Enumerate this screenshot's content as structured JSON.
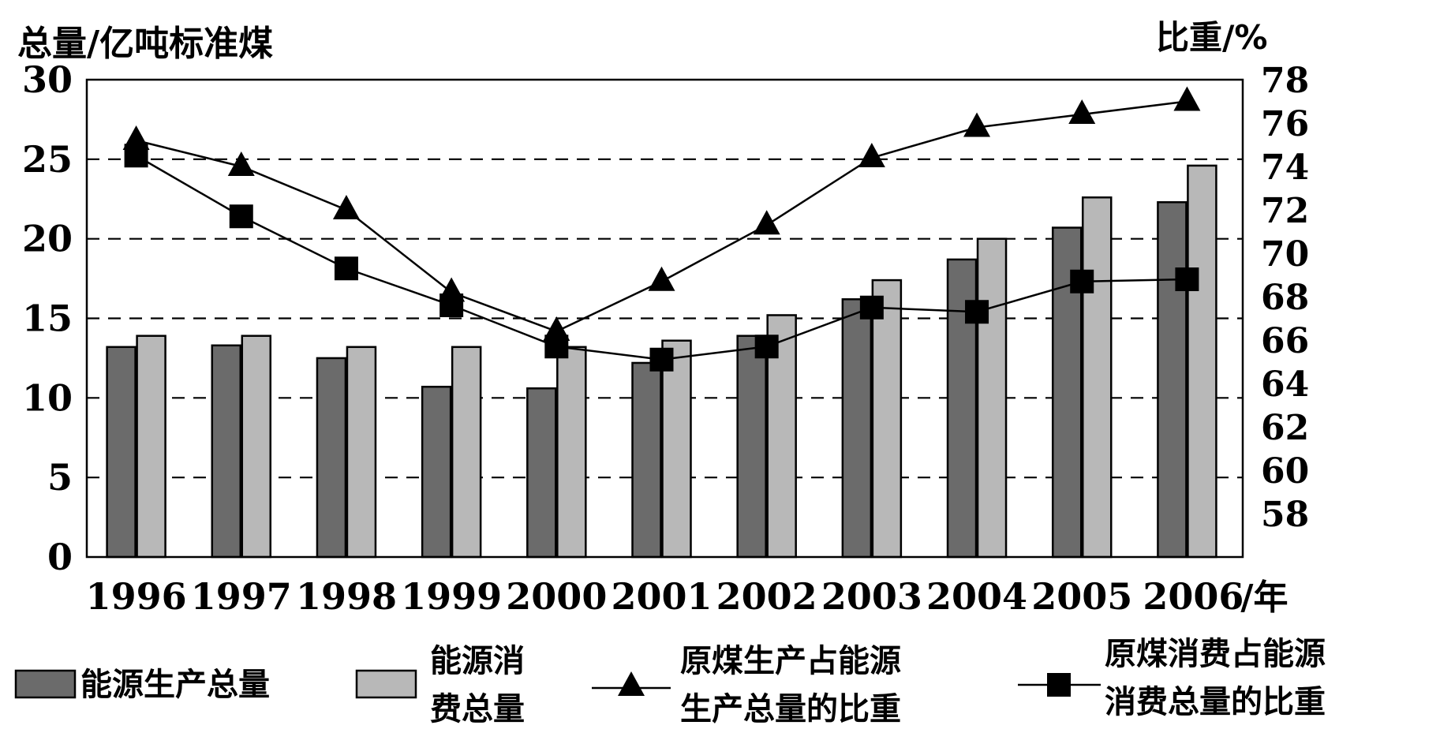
{
  "chart_data": {
    "type": "bar",
    "left_axis_title": "总量/亿吨标准煤",
    "right_axis_title": "比重/%",
    "categories": [
      "1996",
      "1997",
      "1998",
      "1999",
      "2000",
      "2001",
      "2002",
      "2003",
      "2004",
      "2005",
      "2006"
    ],
    "x_unit_label": "/年",
    "left_axis": {
      "ylim": [
        0,
        30
      ],
      "ticks": [
        "0",
        "5",
        "10",
        "15",
        "20",
        "25",
        "30"
      ]
    },
    "right_axis": {
      "ylim": [
        56,
        78
      ],
      "ticks": [
        "58",
        "60",
        "62",
        "64",
        "66",
        "68",
        "70",
        "72",
        "74",
        "76",
        "78"
      ]
    },
    "grid": "dashed horizontal at 5, 10, 15, 20, 25",
    "bar_series": [
      {
        "name": "能源生产总量",
        "color": "#6b6b6b",
        "values": [
          13.2,
          13.3,
          12.5,
          10.7,
          10.6,
          12.2,
          13.9,
          16.2,
          18.7,
          20.7,
          22.3
        ]
      },
      {
        "name": "能源消费总量",
        "color": "#b8b8b8",
        "values": [
          13.9,
          13.9,
          13.2,
          13.2,
          13.2,
          13.6,
          15.2,
          17.4,
          20.0,
          22.6,
          24.6
        ]
      }
    ],
    "line_series": [
      {
        "name": "原煤生产占能源生产总量的比重",
        "marker": "triangle",
        "axis": "right",
        "values": [
          75.2,
          74.0,
          72.0,
          68.2,
          66.4,
          68.7,
          71.3,
          74.4,
          75.8,
          76.4,
          77.0
        ]
      },
      {
        "name": "原煤消费占能源消费总量的比重",
        "marker": "square",
        "axis": "right",
        "values": [
          74.5,
          71.7,
          69.3,
          67.6,
          65.7,
          65.1,
          65.7,
          67.5,
          67.3,
          68.7,
          68.8
        ]
      }
    ],
    "legend": [
      {
        "label_lines": [
          "能源生产总量"
        ],
        "symbol": "dark-bar"
      },
      {
        "label_lines": [
          "能源消",
          "费总量"
        ],
        "symbol": "light-bar"
      },
      {
        "label_lines": [
          "原煤生产占能源",
          "生产总量的比重"
        ],
        "symbol": "triangle-line"
      },
      {
        "label_lines": [
          "原煤消费占能源",
          "消费总量的比重"
        ],
        "symbol": "square-line"
      }
    ],
    "legend_position": "bottom"
  }
}
